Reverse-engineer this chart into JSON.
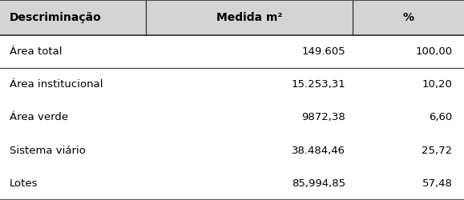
{
  "headers": [
    "Descriminação",
    "Medida m²",
    "%"
  ],
  "rows": [
    [
      "Área total",
      "149.605",
      "100,00"
    ],
    [
      "Área institucional",
      "15.253,31",
      "10,20"
    ],
    [
      "Área verde",
      "9872,38",
      "6,60"
    ],
    [
      "Sistema viário",
      "38.484,46",
      "25,72"
    ],
    [
      "Lotes",
      "85,994,85",
      "57,48"
    ]
  ],
  "header_fontsize": 10,
  "row_fontsize": 9.5,
  "bg_color": "#ffffff",
  "header_bg": "#d4d4d4",
  "line_color": "#333333",
  "text_color": "#000000",
  "col_dividers": [
    0.315,
    0.76
  ],
  "figwidth": 5.79,
  "figheight": 2.5,
  "dpi": 100
}
